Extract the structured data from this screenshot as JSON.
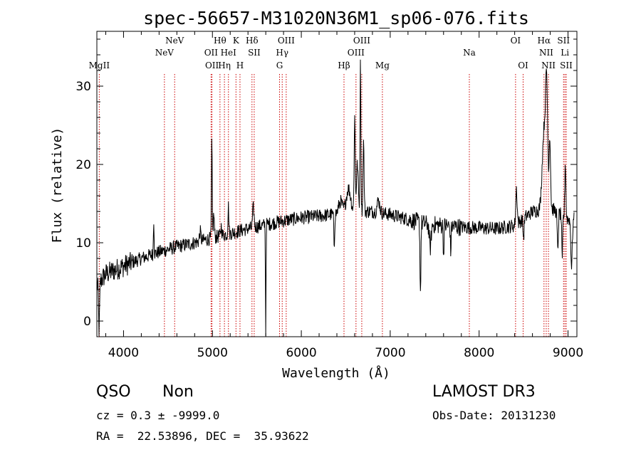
{
  "chart_data": {
    "type": "line",
    "title": "spec-56657-M31020N36M1_sp06-076.fits",
    "xlabel": "Wavelength (Å)",
    "ylabel": "Flux (relative)",
    "xlim": [
      3700,
      9100
    ],
    "ylim": [
      -2,
      37
    ],
    "x_ticks": [
      4000,
      5000,
      6000,
      7000,
      8000,
      9000
    ],
    "y_ticks": [
      0,
      10,
      20,
      30
    ],
    "x_minor_step": 200,
    "y_minor_step": 2,
    "colors": {
      "spectrum": "#000000",
      "line_marker": "#cc0000",
      "axis": "#000000"
    },
    "continuum_knots": [
      [
        3700,
        4.5
      ],
      [
        3800,
        6.0
      ],
      [
        4000,
        7.0
      ],
      [
        4200,
        8.0
      ],
      [
        4400,
        8.8
      ],
      [
        4600,
        9.5
      ],
      [
        4800,
        10.0
      ],
      [
        5000,
        10.6
      ],
      [
        5200,
        11.2
      ],
      [
        5400,
        11.8
      ],
      [
        5600,
        12.3
      ],
      [
        5800,
        12.8
      ],
      [
        6000,
        13.2
      ],
      [
        6200,
        13.4
      ],
      [
        6400,
        13.7
      ],
      [
        6600,
        14.0
      ],
      [
        6800,
        14.0
      ],
      [
        7000,
        13.6
      ],
      [
        7200,
        13.0
      ],
      [
        7400,
        12.4
      ],
      [
        7600,
        12.2
      ],
      [
        7800,
        12.0
      ],
      [
        8000,
        11.9
      ],
      [
        8200,
        11.8
      ],
      [
        8400,
        12.2
      ],
      [
        8600,
        14.0
      ],
      [
        8800,
        14.5
      ],
      [
        9000,
        13.0
      ],
      [
        9100,
        13.0
      ]
    ],
    "features": [
      {
        "center": 3725,
        "amp": -6,
        "width": 6
      },
      {
        "center": 4340,
        "amp": 4.5,
        "width": 4
      },
      {
        "center": 4862,
        "amp": 1.2,
        "width": 8
      },
      {
        "center": 4993,
        "amp": 12.5,
        "width": 4
      },
      {
        "center": 5015,
        "amp": 3,
        "width": 6
      },
      {
        "center": 5100,
        "amp": 1.2,
        "width": 6
      },
      {
        "center": 5180,
        "amp": 3.5,
        "width": 5
      },
      {
        "center": 5460,
        "amp": 2.5,
        "width": 8
      },
      {
        "center": 5600,
        "amp": -16,
        "width": 3
      },
      {
        "center": 6370,
        "amp": -4,
        "width": 5
      },
      {
        "center": 6440,
        "amp": 1.5,
        "width": 20
      },
      {
        "center": 6530,
        "amp": 3.0,
        "width": 25
      },
      {
        "center": 6600,
        "amp": 12,
        "width": 6
      },
      {
        "center": 6630,
        "amp": 6,
        "width": 10
      },
      {
        "center": 6665,
        "amp": 19,
        "width": 5
      },
      {
        "center": 6700,
        "amp": 9,
        "width": 6
      },
      {
        "center": 6868,
        "amp": 1.5,
        "width": 15
      },
      {
        "center": 7340,
        "amp": -9,
        "width": 5
      },
      {
        "center": 7450,
        "amp": -3,
        "width": 10
      },
      {
        "center": 7600,
        "amp": -4,
        "width": 4
      },
      {
        "center": 7680,
        "amp": -3.5,
        "width": 4
      },
      {
        "center": 8500,
        "amp": -2.5,
        "width": 6
      },
      {
        "center": 8420,
        "amp": 4.5,
        "width": 8
      },
      {
        "center": 8730,
        "amp": 10,
        "width": 20
      },
      {
        "center": 8760,
        "amp": 14,
        "width": 12
      },
      {
        "center": 8795,
        "amp": 9,
        "width": 8
      },
      {
        "center": 8885,
        "amp": -5,
        "width": 6
      },
      {
        "center": 8935,
        "amp": -6,
        "width": 5
      },
      {
        "center": 8970,
        "amp": 7,
        "width": 6
      },
      {
        "center": 9040,
        "amp": -6,
        "width": 8
      }
    ],
    "noise_level": 0.9,
    "sample_step": 4,
    "line_markers": [
      {
        "x": 3727,
        "label": "MgII",
        "row": 3
      },
      {
        "x": 4460,
        "label": "NeV",
        "row": 2
      },
      {
        "x": 4575,
        "label": "NeV",
        "row": 1
      },
      {
        "x": 4985,
        "label": "OII",
        "row": 2
      },
      {
        "x": 4995,
        "label": "OII",
        "row": 3
      },
      {
        "x": 5085,
        "label": "Hθ",
        "row": 1
      },
      {
        "x": 5135,
        "label": "Hη",
        "row": 3
      },
      {
        "x": 5180,
        "label": "HeI",
        "row": 2
      },
      {
        "x": 5265,
        "label": "K",
        "row": 1
      },
      {
        "x": 5310,
        "label": "H",
        "row": 3
      },
      {
        "x": 5445,
        "label": "Hδ",
        "row": 1
      },
      {
        "x": 5470,
        "label": "SII",
        "row": 2
      },
      {
        "x": 5755,
        "label": "G",
        "row": 3
      },
      {
        "x": 5785,
        "label": "Hγ",
        "row": 2
      },
      {
        "x": 5830,
        "label": "OIII",
        "row": 1
      },
      {
        "x": 6480,
        "label": "Hβ",
        "row": 3
      },
      {
        "x": 6615,
        "label": "OIII",
        "row": 2
      },
      {
        "x": 6680,
        "label": "OIII",
        "row": 1
      },
      {
        "x": 6912,
        "label": "Mg",
        "row": 3
      },
      {
        "x": 7890,
        "label": "Na",
        "row": 2
      },
      {
        "x": 8410,
        "label": "OI",
        "row": 1
      },
      {
        "x": 8495,
        "label": "OI",
        "row": 3
      },
      {
        "x": 8730,
        "label": "Hα",
        "row": 1
      },
      {
        "x": 8755,
        "label": "NII",
        "row": 2
      },
      {
        "x": 8780,
        "label": "NII",
        "row": 3
      },
      {
        "x": 8950,
        "label": "SII",
        "row": 1
      },
      {
        "x": 8965,
        "label": "Li",
        "row": 2
      },
      {
        "x": 8980,
        "label": "SII",
        "row": 3
      }
    ]
  },
  "info": {
    "class_label": "QSO",
    "subclass_label": "Non",
    "survey_label": "LAMOST DR3",
    "redshift_line": "cz = 0.3 ± -9999.0",
    "obs_date_line": "Obs-Date: 20131230",
    "coords_line": "RA =  22.53896, DEC =  35.93622"
  }
}
